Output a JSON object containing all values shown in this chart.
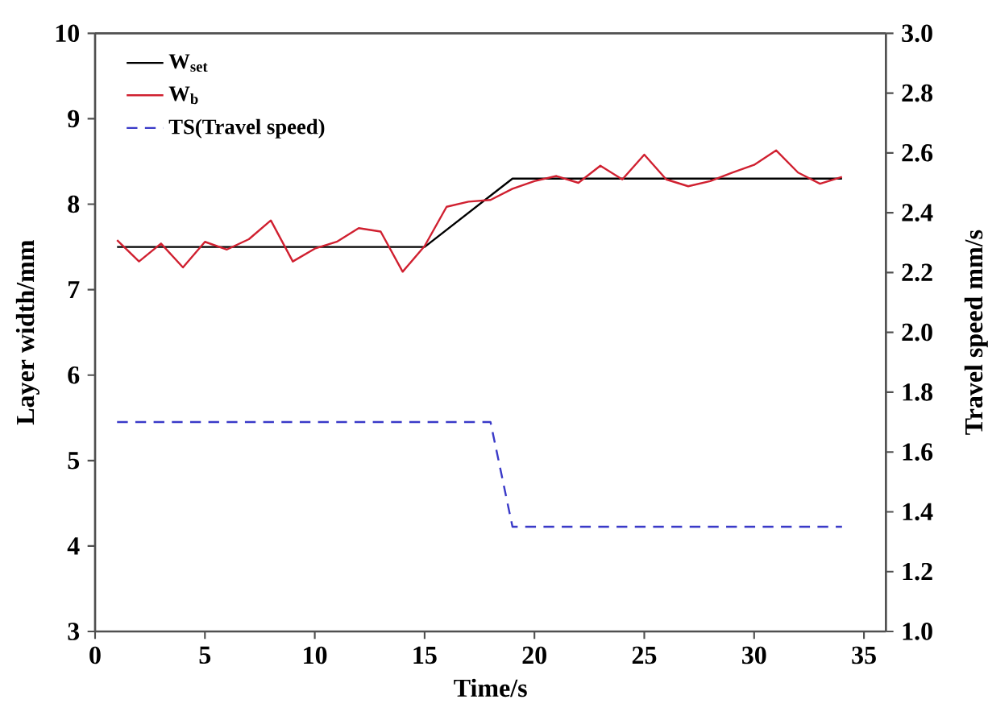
{
  "chart_data": {
    "type": "line",
    "xlabel": "Time/s",
    "ylabel": "Layer width/mm",
    "y2label": "Travel speed mm/s",
    "xlim": [
      0,
      36
    ],
    "xticks": [
      0,
      5,
      10,
      15,
      20,
      25,
      30,
      35
    ],
    "ylim": [
      3,
      10
    ],
    "yticks": [
      3,
      4,
      5,
      6,
      7,
      8,
      9,
      10
    ],
    "y2lim": [
      1.0,
      3.0
    ],
    "y2ticks": [
      {
        "value": 1.0,
        "label": "1.0"
      },
      1.2,
      1.4,
      1.6,
      1.8,
      {
        "value": 2.0,
        "label": "2.0"
      },
      2.2,
      2.4,
      2.6,
      2.8,
      {
        "value": 3.0,
        "label": "3.0"
      }
    ],
    "legend": "top left",
    "marker": "none",
    "series": [
      {
        "name": "W$_{set}$",
        "color": "#000000",
        "line_style": "solid",
        "x": [
          1,
          15,
          19,
          34
        ],
        "values": [
          7.5,
          7.5,
          8.3,
          8.3
        ]
      },
      {
        "name": "W$_{b}$",
        "color": "#d02030",
        "line_style": "solid",
        "x": [
          1,
          2,
          3,
          4,
          5,
          6,
          7,
          8,
          9,
          10,
          11,
          12,
          13,
          14,
          15,
          16,
          17,
          18,
          19,
          20,
          21,
          22,
          23,
          24,
          25,
          26,
          27,
          28,
          29,
          30,
          31,
          32,
          33,
          34
        ],
        "values": [
          7.58,
          7.33,
          7.54,
          7.26,
          7.56,
          7.47,
          7.59,
          7.81,
          7.33,
          7.48,
          7.56,
          7.72,
          7.68,
          7.21,
          7.51,
          7.97,
          8.03,
          8.05,
          8.18,
          8.27,
          8.33,
          8.25,
          8.45,
          8.29,
          8.58,
          8.29,
          8.21,
          8.27,
          8.37,
          8.46,
          8.63,
          8.37,
          8.24,
          8.32
        ]
      },
      {
        "name": "TS(Travel speed)",
        "color": "#3a3ac8",
        "line_style": "dashed",
        "axis": "y2",
        "x": [
          1,
          18,
          19,
          34
        ],
        "values": [
          1.7,
          1.7,
          1.35,
          1.35
        ]
      }
    ]
  }
}
